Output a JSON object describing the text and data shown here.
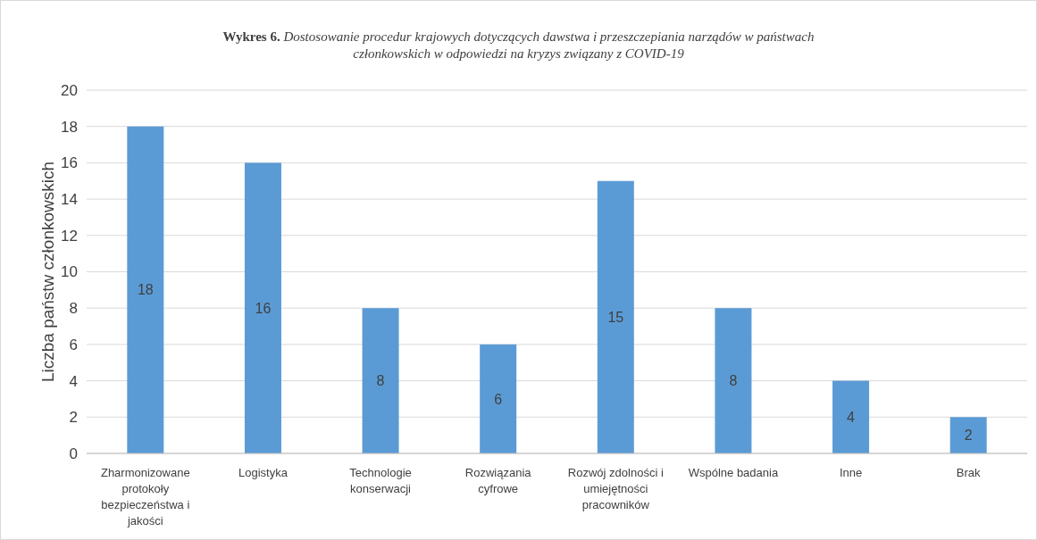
{
  "chart_data": {
    "type": "bar",
    "title": "Wykres 6. Dostosowanie procedur krajowych dotyczących dawstwa i przeszczepiania narządów w państwach członkowskich w odpowiedzi na kryzys związany z COVID-19",
    "ylabel": "Liczba państw członkowskich",
    "categories": [
      "Zharmonizowane protokoły bezpieczeństwa i jakości",
      "Logistyka",
      "Technologie konserwacji",
      "Rozwiązania cyfrowe",
      "Rozwój zdolności i umiejętności pracowników",
      "Wspólne badania",
      "Inne",
      "Brak"
    ],
    "values": [
      18,
      16,
      8,
      6,
      15,
      8,
      4,
      2
    ],
    "color": "#5b9bd5",
    "ylim": [
      0,
      20
    ],
    "yticks": [
      0,
      2,
      4,
      6,
      8,
      10,
      12,
      14,
      16,
      18,
      20
    ],
    "grid": "y",
    "data_labels": true
  }
}
